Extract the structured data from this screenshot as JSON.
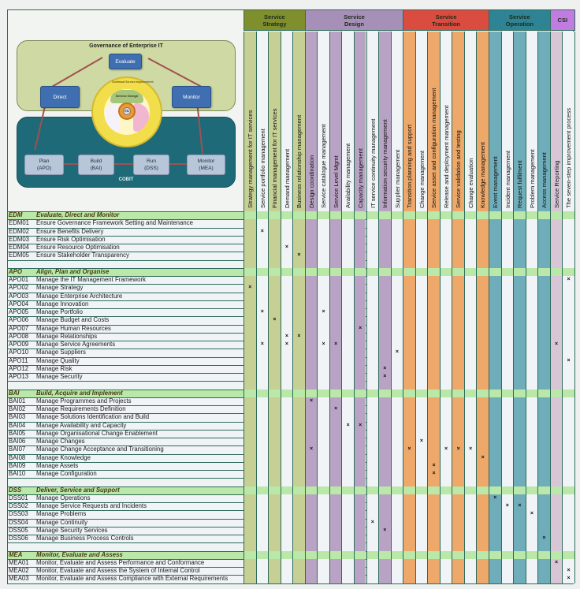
{
  "diagram": {
    "governance_title": "Governance of Enterprise IT",
    "cobit_title": "COBIT",
    "evaluate": "Evaluate",
    "direct": "Direct",
    "monitor_top": "Monitor",
    "plan": [
      "Plan",
      "(APO)"
    ],
    "build": [
      "Build",
      "(BAI)"
    ],
    "run": [
      "Run",
      "(DSS)"
    ],
    "monitor_bottom": [
      "Monitor",
      "(MEA)"
    ],
    "itil_wheel": {
      "outer": "Continual Service Improvement",
      "design": "Service Design",
      "operation": "Service Operation",
      "transition": "Service Transition",
      "strategy": "Service Strategy",
      "center": "ITIL"
    }
  },
  "groups": [
    {
      "label": "Service\nStrategy",
      "color": "#7f8f2e",
      "start": 0,
      "span": 5
    },
    {
      "label": "Service\nDesign",
      "color": "#a690b8",
      "start": 5,
      "span": 8
    },
    {
      "label": "Service\nTransition",
      "color": "#d94c3f",
      "start": 13,
      "span": 7
    },
    {
      "label": "Service\nOperation",
      "color": "#2e8394",
      "start": 20,
      "span": 5
    },
    {
      "label": "CSI",
      "color": "#c07ce0",
      "start": 25,
      "span": 2
    }
  ],
  "columns": [
    {
      "label": "Strategy management for IT services",
      "shade": "#c6cf94"
    },
    {
      "label": "Service portfolio management",
      "shade": "#f1f4f7"
    },
    {
      "label": "Financial management for IT services",
      "shade": "#c6cf94"
    },
    {
      "label": "Demand management",
      "shade": "#f1f4f7"
    },
    {
      "label": "Business relationship management",
      "shade": "#c6cf94"
    },
    {
      "label": "Design coordination",
      "shade": "#b9a3c4"
    },
    {
      "label": "Service catalogue management",
      "shade": "#f1f4f7"
    },
    {
      "label": "Service Level Mgmt",
      "shade": "#b9a3c4"
    },
    {
      "label": "Availability management",
      "shade": "#f1f4f7"
    },
    {
      "label": "Capacity management",
      "shade": "#b9a3c4"
    },
    {
      "label": "IT service continuity management",
      "shade": "#f1f4f7"
    },
    {
      "label": "Information security management",
      "shade": "#b9a3c4"
    },
    {
      "label": "Supplier management",
      "shade": "#f1f4f7"
    },
    {
      "label": "Transition planning and support",
      "shade": "#eda86a"
    },
    {
      "label": "Change management",
      "shade": "#f1f4f7"
    },
    {
      "label": "Service asset and configuration management",
      "shade": "#eda86a"
    },
    {
      "label": "Release and deployment management",
      "shade": "#f1f4f7"
    },
    {
      "label": "Service validation and testing",
      "shade": "#eda86a"
    },
    {
      "label": "Change evaluation",
      "shade": "#f1f4f7"
    },
    {
      "label": "Knowledge management",
      "shade": "#eda86a"
    },
    {
      "label": "Event management",
      "shade": "#6fadbb"
    },
    {
      "label": "Incident management",
      "shade": "#f1f4f7"
    },
    {
      "label": "Request fulfilment",
      "shade": "#6fadbb"
    },
    {
      "label": "Problem management",
      "shade": "#f1f4f7"
    },
    {
      "label": "Access management",
      "shade": "#6fadbb"
    },
    {
      "label": "Service Reporting",
      "shade": "#d8c6d6"
    },
    {
      "label": "The seven-step improvement process",
      "shade": "#f1f4f7"
    }
  ],
  "mark_symbol": "×",
  "sections": [
    {
      "code": "EDM",
      "title": "Evaluate, Direct and Monitor",
      "items": [
        {
          "code": "EDM01",
          "name": "Ensure Governance Framework Setting and Maintenance",
          "marks": []
        },
        {
          "code": "EDM02",
          "name": "Ensure Benefits Delivery",
          "marks": [
            1
          ]
        },
        {
          "code": "EDM03",
          "name": "Ensure Risk Optimisation",
          "marks": []
        },
        {
          "code": "EDM04",
          "name": "Ensure Resource Optimisation",
          "marks": [
            3
          ]
        },
        {
          "code": "EDM05",
          "name": "Ensure Stakeholder Transparency",
          "marks": [
            4
          ]
        }
      ],
      "trailing_blank": true
    },
    {
      "code": "APO",
      "title": "Align, Plan and Organise",
      "items": [
        {
          "code": "APO01",
          "name": "Manage the IT Management Framework",
          "marks": [
            26
          ]
        },
        {
          "code": "APO02",
          "name": "Manage Strategy",
          "marks": [
            0
          ]
        },
        {
          "code": "APO03",
          "name": "Manage Enterprise Architecture",
          "marks": []
        },
        {
          "code": "APO04",
          "name": "Manage Innovation",
          "marks": []
        },
        {
          "code": "APO05",
          "name": "Manage Portfolio",
          "marks": [
            1,
            6
          ]
        },
        {
          "code": "APO06",
          "name": "Manage Budget and Costs",
          "marks": [
            2
          ]
        },
        {
          "code": "APO07",
          "name": "Manage Human Resources",
          "marks": [
            9
          ]
        },
        {
          "code": "APO08",
          "name": "Manage Relationships",
          "marks": [
            3,
            4
          ]
        },
        {
          "code": "APO09",
          "name": "Manage Service Agreements",
          "marks": [
            1,
            3,
            6,
            7,
            25
          ]
        },
        {
          "code": "APO10",
          "name": "Manage Suppliers",
          "marks": [
            12
          ]
        },
        {
          "code": "APO11",
          "name": "Manage Quality",
          "marks": [
            26
          ]
        },
        {
          "code": "APO12",
          "name": "Manage Risk",
          "marks": [
            11
          ]
        },
        {
          "code": "APO13",
          "name": "Manage Security",
          "marks": [
            11
          ]
        }
      ],
      "trailing_blank": true
    },
    {
      "code": "BAI",
      "title": "Build, Acquire and Implement",
      "items": [
        {
          "code": "BAI01",
          "name": "Manage Programmes and Projects",
          "marks": [
            5
          ]
        },
        {
          "code": "BAI02",
          "name": "Manage Requirements Definition",
          "marks": [
            7
          ]
        },
        {
          "code": "BAI03",
          "name": "Manage Solutions Identification and Build",
          "marks": []
        },
        {
          "code": "BAI04",
          "name": "Manage Availability and Capacity",
          "marks": [
            8,
            9
          ]
        },
        {
          "code": "BAI05",
          "name": "Manage Organisational Change Enablement",
          "marks": []
        },
        {
          "code": "BAI06",
          "name": "Manage Changes",
          "marks": [
            14
          ]
        },
        {
          "code": "BAI07",
          "name": "Manage Change Acceptance and Transitioning",
          "marks": [
            5,
            13,
            16,
            17,
            18
          ]
        },
        {
          "code": "BAI08",
          "name": "Manage Knowledge",
          "marks": [
            19
          ]
        },
        {
          "code": "BAI09",
          "name": "Manage Assets",
          "marks": [
            15
          ]
        },
        {
          "code": "BAI10",
          "name": "Manage Configuration",
          "marks": [
            15
          ]
        }
      ],
      "trailing_blank": true
    },
    {
      "code": "DSS",
      "title": "Deliver, Service and Support",
      "items": [
        {
          "code": "DSS01",
          "name": "Manage Operations",
          "marks": [
            20
          ]
        },
        {
          "code": "DSS02",
          "name": "Manage Service Requests and Incidents",
          "marks": [
            21,
            22
          ]
        },
        {
          "code": "DSS03",
          "name": "Manage Problems",
          "marks": [
            23
          ]
        },
        {
          "code": "DSS04",
          "name": "Manage Continuity",
          "marks": [
            10
          ]
        },
        {
          "code": "DSS05",
          "name": "Manage Security Services",
          "marks": [
            11
          ]
        },
        {
          "code": "DSS06",
          "name": "Manage Business Process Controls",
          "marks": [
            24
          ]
        }
      ],
      "trailing_blank": true
    },
    {
      "code": "MEA",
      "title": "Monitor, Evaluate and Assess",
      "items": [
        {
          "code": "MEA01",
          "name": "Monitor, Evaluate and Assess Performance and Conformance",
          "marks": [
            25
          ]
        },
        {
          "code": "MEA02",
          "name": "Monitor, Evaluate and Assess the System of Internal Control",
          "marks": [
            26
          ]
        },
        {
          "code": "MEA03",
          "name": "Monitor, Evaluate and Assess Compliance with External Requirements",
          "marks": [
            26
          ]
        }
      ],
      "trailing_blank": false
    }
  ]
}
